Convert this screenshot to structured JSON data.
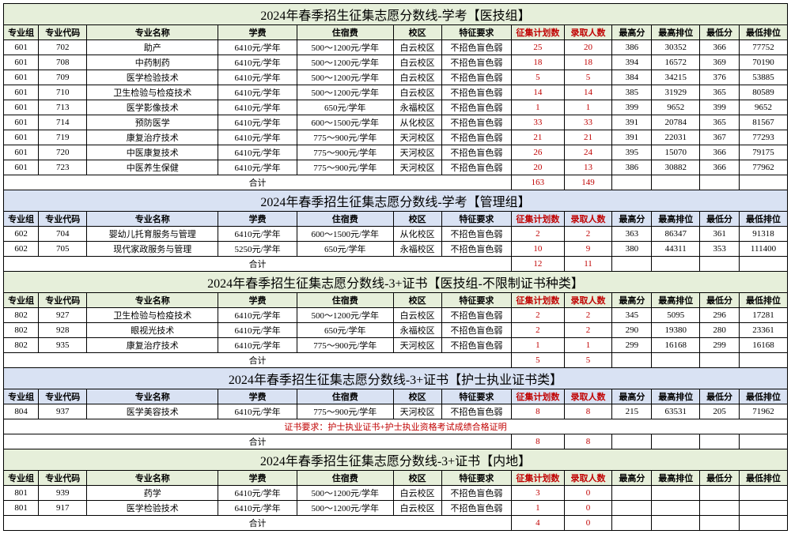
{
  "colors": {
    "bg1": "#e6efda",
    "bg2": "#d9e2f3",
    "bg3": "#e6efda",
    "bg4": "#d9e2f3",
    "bg5": "#e6efda",
    "red": "#c00000"
  },
  "cols": [
    "专业组",
    "专业代码",
    "专业名称",
    "学费",
    "住宿费",
    "校区",
    "特征要求",
    "征集计划数",
    "录取人数",
    "最高分",
    "最高排位",
    "最低分",
    "最低排位"
  ],
  "sections": [
    {
      "title": "2024年春季招生征集志愿分数线-学考【医技组】",
      "bg": "#e6efda",
      "rows": [
        [
          "601",
          "702",
          "助产",
          "6410元/学年",
          "500～1200元/学年",
          "白云校区",
          "不招色盲色弱",
          "25",
          "20",
          "386",
          "30352",
          "366",
          "77752"
        ],
        [
          "601",
          "708",
          "中药制药",
          "6410元/学年",
          "500～1200元/学年",
          "白云校区",
          "不招色盲色弱",
          "18",
          "18",
          "394",
          "16572",
          "369",
          "70190"
        ],
        [
          "601",
          "709",
          "医学检验技术",
          "6410元/学年",
          "500～1200元/学年",
          "白云校区",
          "不招色盲色弱",
          "5",
          "5",
          "384",
          "34215",
          "376",
          "53885"
        ],
        [
          "601",
          "710",
          "卫生检验与检疫技术",
          "6410元/学年",
          "500～1200元/学年",
          "白云校区",
          "不招色盲色弱",
          "14",
          "14",
          "385",
          "31929",
          "365",
          "80589"
        ],
        [
          "601",
          "713",
          "医学影像技术",
          "6410元/学年",
          "650元/学年",
          "永福校区",
          "不招色盲色弱",
          "1",
          "1",
          "399",
          "9652",
          "399",
          "9652"
        ],
        [
          "601",
          "714",
          "预防医学",
          "6410元/学年",
          "600～1500元/学年",
          "从化校区",
          "不招色盲色弱",
          "33",
          "33",
          "391",
          "20784",
          "365",
          "81567"
        ],
        [
          "601",
          "719",
          "康复治疗技术",
          "6410元/学年",
          "775～900元/学年",
          "天河校区",
          "不招色盲色弱",
          "21",
          "21",
          "391",
          "22031",
          "367",
          "77293"
        ],
        [
          "601",
          "720",
          "中医康复技术",
          "6410元/学年",
          "775～900元/学年",
          "天河校区",
          "不招色盲色弱",
          "26",
          "24",
          "395",
          "15070",
          "366",
          "79175"
        ],
        [
          "601",
          "723",
          "中医养生保健",
          "6410元/学年",
          "775～900元/学年",
          "天河校区",
          "不招色盲色弱",
          "20",
          "13",
          "386",
          "30882",
          "366",
          "77962"
        ]
      ],
      "total": [
        "163",
        "149"
      ]
    },
    {
      "title": "2024年春季招生征集志愿分数线-学考【管理组】",
      "bg": "#d9e2f3",
      "rows": [
        [
          "602",
          "704",
          "婴幼儿托育服务与管理",
          "6410元/学年",
          "600～1500元/学年",
          "从化校区",
          "不招色盲色弱",
          "2",
          "2",
          "363",
          "86347",
          "361",
          "91318"
        ],
        [
          "602",
          "705",
          "现代家政服务与管理",
          "5250元/学年",
          "650元/学年",
          "永福校区",
          "不招色盲色弱",
          "10",
          "9",
          "380",
          "44311",
          "353",
          "111400"
        ]
      ],
      "total": [
        "12",
        "11"
      ]
    },
    {
      "title": "2024年春季招生征集志愿分数线-3+证书【医技组-不限制证书种类】",
      "bg": "#e6efda",
      "rows": [
        [
          "802",
          "927",
          "卫生检验与检疫技术",
          "6410元/学年",
          "500～1200元/学年",
          "白云校区",
          "不招色盲色弱",
          "2",
          "2",
          "345",
          "5095",
          "296",
          "17281"
        ],
        [
          "802",
          "928",
          "眼视光技术",
          "6410元/学年",
          "650元/学年",
          "永福校区",
          "不招色盲色弱",
          "2",
          "2",
          "290",
          "19380",
          "280",
          "23361"
        ],
        [
          "802",
          "935",
          "康复治疗技术",
          "6410元/学年",
          "775～900元/学年",
          "天河校区",
          "不招色盲色弱",
          "1",
          "1",
          "299",
          "16168",
          "299",
          "16168"
        ]
      ],
      "total": [
        "5",
        "5"
      ]
    },
    {
      "title": "2024年春季招生征集志愿分数线-3+证书【护士执业证书类】",
      "bg": "#d9e2f3",
      "rows": [
        [
          "804",
          "937",
          "医学美容技术",
          "6410元/学年",
          "775～900元/学年",
          "天河校区",
          "不招色盲色弱",
          "8",
          "8",
          "215",
          "63531",
          "205",
          "71962"
        ]
      ],
      "note": "证书要求：护士执业证书+护士执业资格考试成绩合格证明",
      "total": [
        "8",
        "8"
      ]
    },
    {
      "title": "2024年春季招生征集志愿分数线-3+证书【内地】",
      "bg": "#e6efda",
      "rows": [
        [
          "801",
          "939",
          "药学",
          "6410元/学年",
          "500～1200元/学年",
          "白云校区",
          "不招色盲色弱",
          "3",
          "0",
          "",
          "",
          "",
          ""
        ],
        [
          "801",
          "917",
          "医学检验技术",
          "6410元/学年",
          "500～1200元/学年",
          "白云校区",
          "不招色盲色弱",
          "1",
          "0",
          "",
          "",
          "",
          ""
        ]
      ],
      "total": [
        "4",
        "0"
      ]
    }
  ],
  "totalLabel": "合计"
}
